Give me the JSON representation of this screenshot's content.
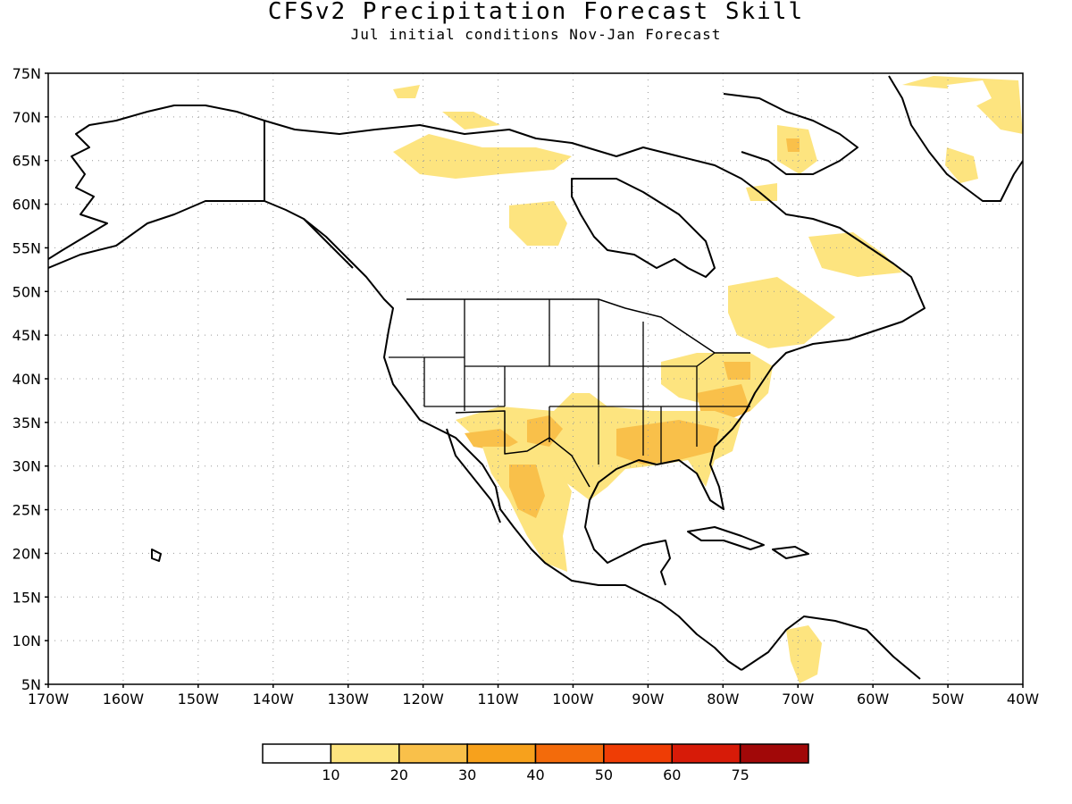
{
  "title": "CFSv2 Precipitation Forecast Skill",
  "subtitle": "Jul initial conditions  Nov-Jan Forecast",
  "map": {
    "lon_range": [
      -170,
      -40
    ],
    "lat_range": [
      5,
      75
    ],
    "lon_ticks": [
      "170W",
      "160W",
      "150W",
      "140W",
      "130W",
      "120W",
      "110W",
      "100W",
      "90W",
      "80W",
      "70W",
      "60W",
      "50W",
      "40W"
    ],
    "lat_ticks": [
      "75N",
      "70N",
      "65N",
      "60N",
      "55N",
      "50N",
      "45N",
      "40N",
      "35N",
      "30N",
      "25N",
      "20N",
      "15N",
      "10N",
      "5N"
    ],
    "grid": "dotted",
    "regions": [
      "Alaska",
      "Canada",
      "Greenland",
      "United States",
      "Mexico",
      "Central America",
      "Caribbean",
      "South America (north)"
    ]
  },
  "colorbar": {
    "labels": [
      "10",
      "20",
      "30",
      "40",
      "50",
      "60",
      "75"
    ],
    "colors": [
      "#ffffff",
      "#fde47f",
      "#f9c04a",
      "#f7a11c",
      "#f36b0b",
      "#ef3d05",
      "#d71b08",
      "#a10808"
    ]
  }
}
